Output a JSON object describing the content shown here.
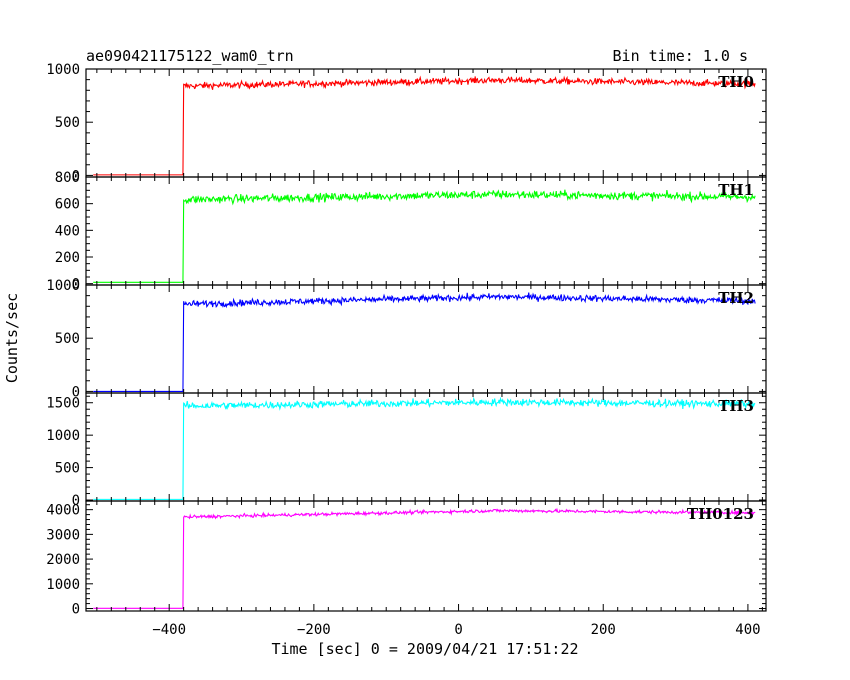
{
  "chart_data": {
    "type": "line",
    "title": "ae090421175122_wam0_trn",
    "bin_time_label": "Bin time: 1.0 s",
    "xlabel": "Time [sec] 0 = 2009/04/21 17:51:22",
    "ylabel": "Counts/sec",
    "xlim": [
      -515,
      425
    ],
    "x_ticks": [
      -400,
      -200,
      0,
      200,
      400
    ],
    "x_tick_labels": [
      "−400",
      "−200",
      "0",
      "200",
      "400"
    ],
    "step_time": -380,
    "series": [
      {
        "name": "TH0",
        "color": "#ff0000",
        "ylim": [
          -15,
          1000
        ],
        "yticks": [
          0,
          500,
          1000
        ],
        "y_tick_labels": [
          "0",
          "500",
          "1000"
        ],
        "baseline": 5,
        "level_start": 840,
        "level_mid": 895,
        "level_end": 860,
        "noise": 22
      },
      {
        "name": "TH1",
        "color": "#00ff00",
        "ylim": [
          -10,
          800
        ],
        "yticks": [
          0,
          200,
          400,
          600,
          800
        ],
        "y_tick_labels": [
          "0",
          "200",
          "400",
          "600",
          "800"
        ],
        "baseline": 10,
        "level_start": 630,
        "level_mid": 670,
        "level_end": 650,
        "noise": 22
      },
      {
        "name": "TH2",
        "color": "#0000ff",
        "ylim": [
          -15,
          1000
        ],
        "yticks": [
          0,
          500,
          1000
        ],
        "y_tick_labels": [
          "0",
          "500",
          "1000"
        ],
        "baseline": 0,
        "level_start": 820,
        "level_mid": 890,
        "level_end": 850,
        "noise": 22
      },
      {
        "name": "TH3",
        "color": "#00ffff",
        "ylim": [
          -15,
          1650
        ],
        "yticks": [
          0,
          500,
          1000,
          1500
        ],
        "y_tick_labels": [
          "0",
          "500",
          "1000",
          "1500"
        ],
        "baseline": 10,
        "level_start": 1450,
        "level_mid": 1510,
        "level_end": 1480,
        "noise": 40
      },
      {
        "name": "TH0123",
        "color": "#ff00ff",
        "ylim": [
          -100,
          4350
        ],
        "yticks": [
          0,
          1000,
          2000,
          3000,
          4000
        ],
        "y_tick_labels": [
          "0",
          "1000",
          "2000",
          "3000",
          "4000"
        ],
        "baseline": 10,
        "level_start": 3700,
        "level_mid": 3960,
        "level_end": 3870,
        "noise": 45
      }
    ]
  }
}
